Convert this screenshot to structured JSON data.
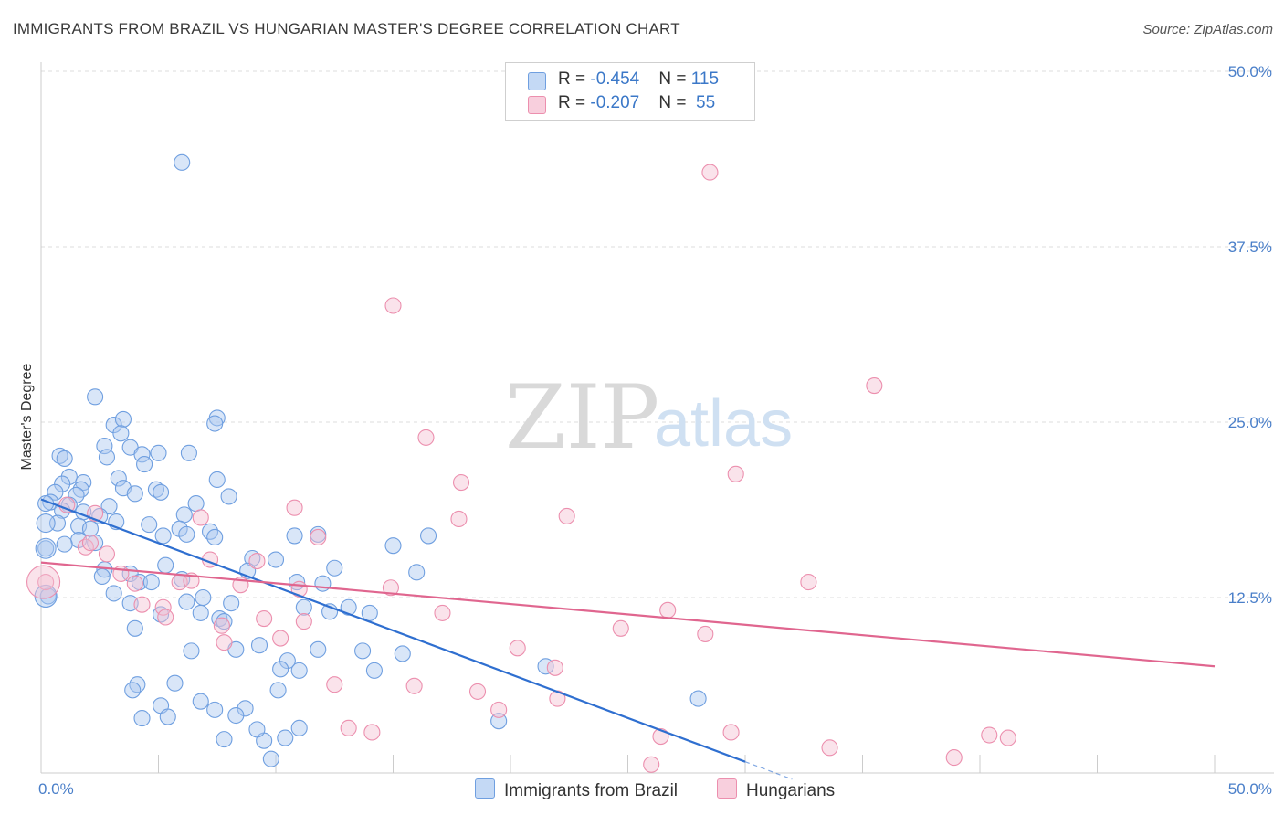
{
  "title": "IMMIGRANTS FROM BRAZIL VS HUNGARIAN MASTER'S DEGREE CORRELATION CHART",
  "source": "Source: ZipAtlas.com",
  "watermark": {
    "zip": "ZIP",
    "atlas": "atlas"
  },
  "colors": {
    "blue": "#6f9fe0",
    "blue_fill": "#aac8f0",
    "pink": "#ec8fae",
    "pink_fill": "#f5c0d3",
    "blue_line": "#2f6fd0",
    "pink_line": "#e0668f"
  },
  "legend": {
    "row1": {
      "r_label": "R = ",
      "r_value": "-0.454",
      "n_label": "N = ",
      "n_value": "115"
    },
    "row2": {
      "r_label": "R = ",
      "r_value": "-0.207",
      "n_label": "N = ",
      "n_value": " 55"
    }
  },
  "bottom_legend": {
    "series1": "Immigrants from Brazil",
    "series2": "Hungarians"
  },
  "chart_data": {
    "type": "scatter",
    "title": "IMMIGRANTS FROM BRAZIL VS HUNGARIAN MASTER'S DEGREE CORRELATION CHART",
    "xlabel": "",
    "ylabel": "Master's Degree",
    "xlim": [
      0,
      50
    ],
    "ylim": [
      0,
      50
    ],
    "x_tick_labels": [
      "0.0%",
      "50.0%"
    ],
    "y_tick_labels": [
      "12.5%",
      "25.0%",
      "37.5%",
      "50.0%"
    ],
    "y_ticks": [
      12.5,
      25.0,
      37.5,
      50.0
    ],
    "series": [
      {
        "name": "Immigrants from Brazil",
        "R": -0.454,
        "N": 115,
        "trend": {
          "x0": 0.0,
          "y0": 19.5,
          "x1": 30.0,
          "y1": 0.8,
          "dash_to_x": 32.0
        },
        "points": [
          [
            6.0,
            43.5
          ],
          [
            2.3,
            26.8
          ],
          [
            7.5,
            25.3
          ],
          [
            3.1,
            24.8
          ],
          [
            3.5,
            25.2
          ],
          [
            7.4,
            24.9
          ],
          [
            3.4,
            24.2
          ],
          [
            2.7,
            23.3
          ],
          [
            3.8,
            23.2
          ],
          [
            4.3,
            22.7
          ],
          [
            5.0,
            22.8
          ],
          [
            6.3,
            22.8
          ],
          [
            0.8,
            22.6
          ],
          [
            1.0,
            22.4
          ],
          [
            2.8,
            22.5
          ],
          [
            4.4,
            22.0
          ],
          [
            1.2,
            21.1
          ],
          [
            3.3,
            21.0
          ],
          [
            7.5,
            20.9
          ],
          [
            1.8,
            20.7
          ],
          [
            0.9,
            20.6
          ],
          [
            1.7,
            20.2
          ],
          [
            3.5,
            20.3
          ],
          [
            4.9,
            20.2
          ],
          [
            0.6,
            20.0
          ],
          [
            1.5,
            19.8
          ],
          [
            4.0,
            19.9
          ],
          [
            5.1,
            20.0
          ],
          [
            8.0,
            19.7
          ],
          [
            0.4,
            19.3
          ],
          [
            1.2,
            19.1
          ],
          [
            2.9,
            19.0
          ],
          [
            6.6,
            19.2
          ],
          [
            0.2,
            19.2
          ],
          [
            1.8,
            18.6
          ],
          [
            2.5,
            18.3
          ],
          [
            0.9,
            18.7
          ],
          [
            6.1,
            18.4
          ],
          [
            3.2,
            17.9
          ],
          [
            0.7,
            17.8
          ],
          [
            1.6,
            17.6
          ],
          [
            2.1,
            17.4
          ],
          [
            4.6,
            17.7
          ],
          [
            5.9,
            17.4
          ],
          [
            7.2,
            17.2
          ],
          [
            6.2,
            17.0
          ],
          [
            5.2,
            16.9
          ],
          [
            7.4,
            16.8
          ],
          [
            10.8,
            16.9
          ],
          [
            11.8,
            17.0
          ],
          [
            16.5,
            16.9
          ],
          [
            1.6,
            16.6
          ],
          [
            2.3,
            16.4
          ],
          [
            1.0,
            16.3
          ],
          [
            15.0,
            16.2
          ],
          [
            0.2,
            16.0
          ],
          [
            9.0,
            15.3
          ],
          [
            10.0,
            15.2
          ],
          [
            2.7,
            14.5
          ],
          [
            5.3,
            14.8
          ],
          [
            8.8,
            14.4
          ],
          [
            12.5,
            14.6
          ],
          [
            16.0,
            14.3
          ],
          [
            2.6,
            14.0
          ],
          [
            3.8,
            14.2
          ],
          [
            4.2,
            13.6
          ],
          [
            4.7,
            13.6
          ],
          [
            6.0,
            13.8
          ],
          [
            10.9,
            13.6
          ],
          [
            12.0,
            13.5
          ],
          [
            3.1,
            12.8
          ],
          [
            0.3,
            12.6
          ],
          [
            6.9,
            12.5
          ],
          [
            3.8,
            12.1
          ],
          [
            6.2,
            12.2
          ],
          [
            8.1,
            12.1
          ],
          [
            11.2,
            11.8
          ],
          [
            12.3,
            11.5
          ],
          [
            13.1,
            11.8
          ],
          [
            14.0,
            11.4
          ],
          [
            5.1,
            11.3
          ],
          [
            6.8,
            11.4
          ],
          [
            7.6,
            11.0
          ],
          [
            7.8,
            10.8
          ],
          [
            4.0,
            10.3
          ],
          [
            9.3,
            9.1
          ],
          [
            11.8,
            8.8
          ],
          [
            13.7,
            8.7
          ],
          [
            15.4,
            8.5
          ],
          [
            6.4,
            8.7
          ],
          [
            8.3,
            8.8
          ],
          [
            10.5,
            8.0
          ],
          [
            11.0,
            7.3
          ],
          [
            14.2,
            7.3
          ],
          [
            21.5,
            7.6
          ],
          [
            10.2,
            7.4
          ],
          [
            5.7,
            6.4
          ],
          [
            4.1,
            6.3
          ],
          [
            10.1,
            5.9
          ],
          [
            3.9,
            5.9
          ],
          [
            28.0,
            5.3
          ],
          [
            6.8,
            5.1
          ],
          [
            5.1,
            4.8
          ],
          [
            7.4,
            4.5
          ],
          [
            8.7,
            4.6
          ],
          [
            4.3,
            3.9
          ],
          [
            5.4,
            4.0
          ],
          [
            8.3,
            4.1
          ],
          [
            19.5,
            3.7
          ],
          [
            7.8,
            2.4
          ],
          [
            9.5,
            2.3
          ],
          [
            10.4,
            2.5
          ],
          [
            9.8,
            1.0
          ],
          [
            9.2,
            3.1
          ],
          [
            11.0,
            3.2
          ]
        ]
      },
      {
        "name": "Hungarians",
        "R": -0.207,
        "N": 55,
        "trend": {
          "x0": 0.0,
          "y0": 15.0,
          "x1": 50.0,
          "y1": 7.6
        },
        "points": [
          [
            28.5,
            42.8
          ],
          [
            15.0,
            33.3
          ],
          [
            35.5,
            27.6
          ],
          [
            16.4,
            23.9
          ],
          [
            17.9,
            20.7
          ],
          [
            29.6,
            21.3
          ],
          [
            10.8,
            18.9
          ],
          [
            17.8,
            18.1
          ],
          [
            22.4,
            18.3
          ],
          [
            6.8,
            18.2
          ],
          [
            1.1,
            19.1
          ],
          [
            2.3,
            18.5
          ],
          [
            11.8,
            16.8
          ],
          [
            1.9,
            16.1
          ],
          [
            2.1,
            16.4
          ],
          [
            2.8,
            15.6
          ],
          [
            7.2,
            15.2
          ],
          [
            9.2,
            15.1
          ],
          [
            3.4,
            14.2
          ],
          [
            5.9,
            13.6
          ],
          [
            6.4,
            13.7
          ],
          [
            4.0,
            13.5
          ],
          [
            8.5,
            13.4
          ],
          [
            11.0,
            13.1
          ],
          [
            14.9,
            13.2
          ],
          [
            32.7,
            13.6
          ],
          [
            0.2,
            13.6
          ],
          [
            4.3,
            12.0
          ],
          [
            5.2,
            11.8
          ],
          [
            17.1,
            11.4
          ],
          [
            26.7,
            11.6
          ],
          [
            5.3,
            11.1
          ],
          [
            9.5,
            11.0
          ],
          [
            11.2,
            10.8
          ],
          [
            7.7,
            10.5
          ],
          [
            24.7,
            10.3
          ],
          [
            28.3,
            9.9
          ],
          [
            7.8,
            9.3
          ],
          [
            10.2,
            9.6
          ],
          [
            20.3,
            8.9
          ],
          [
            21.9,
            7.5
          ],
          [
            12.5,
            6.3
          ],
          [
            15.9,
            6.2
          ],
          [
            18.6,
            5.8
          ],
          [
            22.0,
            5.3
          ],
          [
            19.5,
            4.5
          ],
          [
            13.1,
            3.2
          ],
          [
            14.1,
            2.9
          ],
          [
            26.4,
            2.6
          ],
          [
            29.4,
            2.9
          ],
          [
            33.6,
            1.8
          ],
          [
            40.4,
            2.7
          ],
          [
            41.2,
            2.5
          ],
          [
            26.0,
            0.6
          ],
          [
            38.9,
            1.1
          ]
        ]
      }
    ]
  }
}
